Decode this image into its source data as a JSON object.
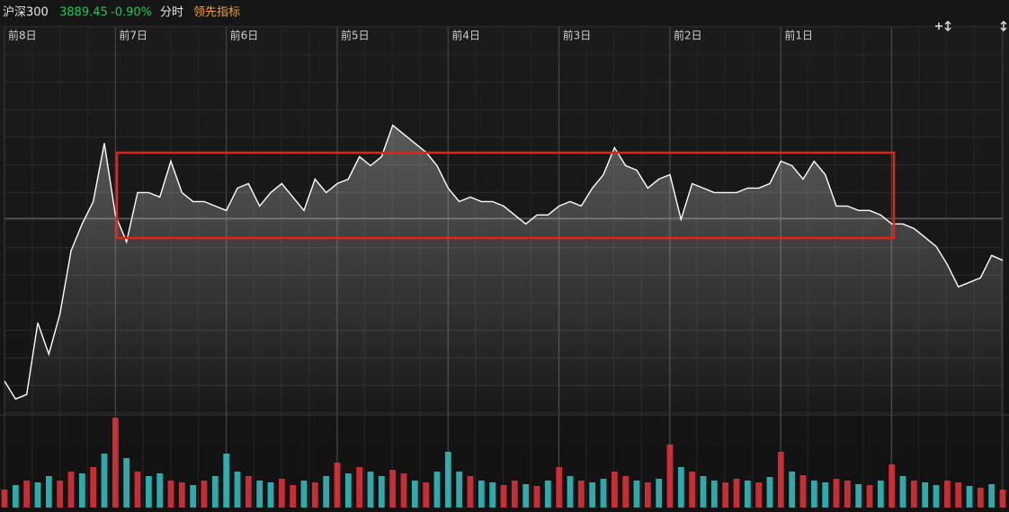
{
  "chart_data": {
    "type": "line",
    "title": "沪深300",
    "price": "3889.45",
    "change": "-0.90%",
    "mode": "分时",
    "indicator": "领先指标",
    "categories": [
      "前8日",
      null,
      null,
      null,
      null,
      null,
      null,
      null,
      null,
      null,
      "前7日",
      null,
      null,
      null,
      null,
      null,
      null,
      null,
      null,
      null,
      "前6日",
      null,
      null,
      null,
      null,
      null,
      null,
      null,
      null,
      null,
      "前5日",
      null,
      null,
      null,
      null,
      null,
      null,
      null,
      null,
      null,
      "前4日",
      null,
      null,
      null,
      null,
      null,
      null,
      null,
      null,
      null,
      "前3日",
      null,
      null,
      null,
      null,
      null,
      null,
      null,
      null,
      null,
      "前2日",
      null,
      null,
      null,
      null,
      null,
      null,
      null,
      null,
      null,
      "前1日",
      null,
      null,
      null,
      null,
      null,
      null,
      null,
      null,
      null,
      null,
      null,
      null,
      null,
      null,
      null,
      null,
      null,
      null,
      null,
      null
    ],
    "series": [
      {
        "color": "#ffffff",
        "values": [
          3787.2,
          3772.0,
          3775.8,
          3836.6,
          3810.0,
          3844.2,
          3897.4,
          3920.2,
          3939.2,
          3988.6,
          3927.8,
          3905.0,
          3946.8,
          3946.8,
          3943.0,
          3973.4,
          3946.8,
          3939.2,
          3939.2,
          3935.4,
          3931.6,
          3950.6,
          3954.4,
          3935.4,
          3946.8,
          3954.4,
          3943.0,
          3931.6,
          3958.2,
          3946.8,
          3954.4,
          3958.2,
          3977.2,
          3969.6,
          3977.2,
          4003.8,
          3996.2,
          3988.6,
          3981.0,
          3969.6,
          3950.6,
          3939.2,
          3943.0,
          3939.2,
          3939.2,
          3935.4,
          3927.8,
          3920.2,
          3927.8,
          3927.8,
          3935.4,
          3939.2,
          3935.4,
          3950.6,
          3962.0,
          3984.8,
          3969.6,
          3965.8,
          3950.6,
          3958.2,
          3962.0,
          3924.0,
          3954.4,
          3950.6,
          3946.8,
          3946.8,
          3946.8,
          3950.6,
          3950.6,
          3954.4,
          3973.4,
          3969.6,
          3958.2,
          3973.4,
          3962.0,
          3935.4,
          3935.4,
          3931.6,
          3931.6,
          3927.8,
          3920.2,
          3920.2,
          3916.4,
          3908.8,
          3901.2,
          3886.0,
          3867.0,
          3870.8,
          3874.6,
          3893.6,
          3889.45
        ]
      }
    ],
    "ylim": [
      3760,
      4087
    ],
    "prev_close": 3924.8,
    "volume": {
      "ylim": [
        0,
        100
      ],
      "up_color": "#e8323c",
      "down_color": "#35c4c4",
      "values": [
        20,
        25,
        30,
        28,
        35,
        30,
        40,
        38,
        45,
        60,
        100,
        55,
        40,
        35,
        38,
        30,
        28,
        25,
        30,
        35,
        60,
        40,
        35,
        30,
        28,
        32,
        25,
        30,
        28,
        35,
        50,
        38,
        45,
        40,
        35,
        42,
        38,
        30,
        28,
        40,
        62,
        40,
        35,
        30,
        28,
        25,
        30,
        26,
        24,
        30,
        45,
        35,
        30,
        28,
        32,
        40,
        35,
        30,
        28,
        32,
        70,
        45,
        40,
        35,
        30,
        28,
        32,
        30,
        28,
        34,
        62,
        40,
        36,
        30,
        28,
        32,
        30,
        26,
        25,
        30,
        48,
        35,
        30,
        28,
        25,
        30,
        28,
        24,
        22,
        26,
        20
      ],
      "up": [
        true,
        false,
        true,
        false,
        false,
        true,
        true,
        false,
        true,
        false,
        true,
        false,
        true,
        false,
        false,
        true,
        true,
        false,
        true,
        false,
        false,
        false,
        true,
        false,
        false,
        true,
        true,
        false,
        true,
        false,
        true,
        false,
        true,
        false,
        false,
        true,
        true,
        false,
        true,
        false,
        false,
        false,
        true,
        false,
        false,
        true,
        true,
        false,
        true,
        false,
        true,
        false,
        true,
        false,
        false,
        true,
        true,
        false,
        true,
        false,
        true,
        false,
        true,
        false,
        false,
        true,
        true,
        false,
        true,
        false,
        true,
        false,
        true,
        false,
        false,
        true,
        true,
        false,
        true,
        false,
        true,
        false,
        true,
        false,
        false,
        true,
        true,
        false,
        true,
        false,
        true
      ]
    }
  }
}
